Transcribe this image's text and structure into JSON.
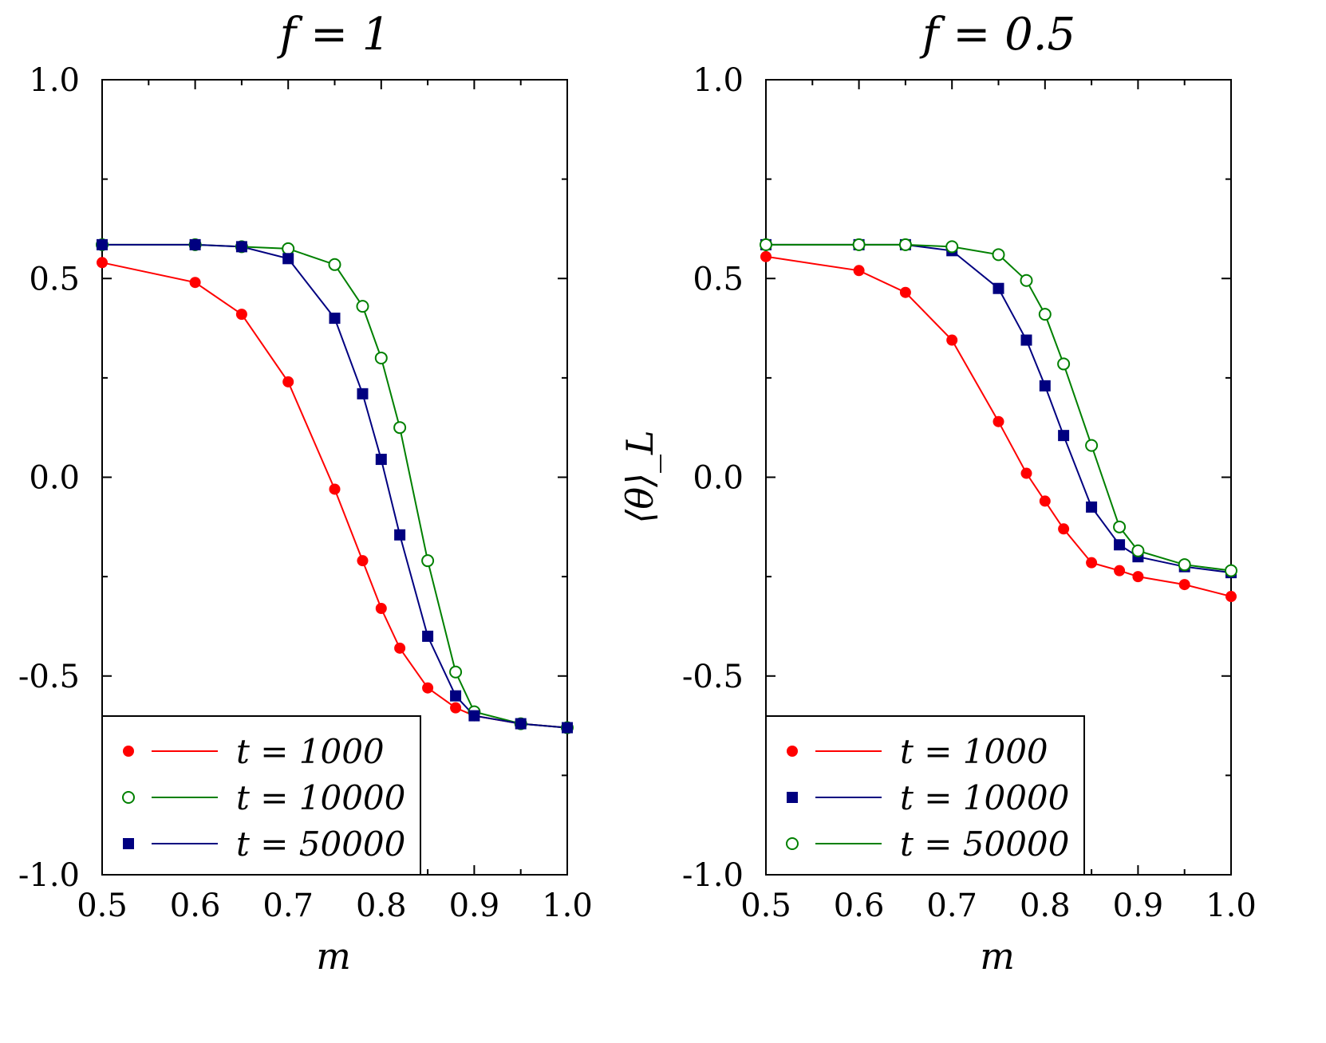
{
  "shared_ylabel": "⟨θ⟩_L",
  "colors": {
    "red": "#ff0000",
    "green": "#008000",
    "navy": "#000080"
  },
  "chart_data": [
    {
      "type": "line",
      "title": "f = 1",
      "xlabel": "m",
      "xlim": [
        0.5,
        1.0
      ],
      "ylim": [
        -1.0,
        1.0
      ],
      "xticks": [
        0.5,
        0.6,
        0.7,
        0.8,
        0.9,
        1.0
      ],
      "xtick_labels": [
        "0.5",
        "0.6",
        "0.7",
        "0.8",
        "0.9",
        "1.0"
      ],
      "yticks": [
        -1.0,
        -0.5,
        0.0,
        0.5,
        1.0
      ],
      "ytick_labels": [
        "-1.0",
        "-0.5",
        "0.0",
        "0.5",
        "1.0"
      ],
      "grid": false,
      "legend_position": "bottom-left",
      "series": [
        {
          "name": "t = 1000",
          "color": "#ff0000",
          "marker": "filled-circle",
          "x": [
            0.5,
            0.6,
            0.65,
            0.7,
            0.75,
            0.78,
            0.8,
            0.82,
            0.85,
            0.88,
            0.9,
            0.95,
            1.0
          ],
          "y": [
            0.54,
            0.49,
            0.41,
            0.24,
            -0.03,
            -0.21,
            -0.33,
            -0.43,
            -0.53,
            -0.58,
            -0.6,
            -0.62,
            -0.63
          ]
        },
        {
          "name": "t = 10000",
          "color": "#008000",
          "marker": "open-circle",
          "x": [
            0.5,
            0.6,
            0.65,
            0.7,
            0.75,
            0.78,
            0.8,
            0.82,
            0.85,
            0.88,
            0.9,
            0.95,
            1.0
          ],
          "y": [
            0.585,
            0.585,
            0.58,
            0.575,
            0.535,
            0.43,
            0.3,
            0.125,
            -0.21,
            -0.49,
            -0.59,
            -0.62,
            -0.63
          ]
        },
        {
          "name": "t = 50000",
          "color": "#000080",
          "marker": "filled-square",
          "x": [
            0.5,
            0.6,
            0.65,
            0.7,
            0.75,
            0.78,
            0.8,
            0.82,
            0.85,
            0.88,
            0.9,
            0.95,
            1.0
          ],
          "y": [
            0.585,
            0.585,
            0.58,
            0.55,
            0.4,
            0.21,
            0.045,
            -0.145,
            -0.4,
            -0.55,
            -0.6,
            -0.62,
            -0.63
          ]
        }
      ]
    },
    {
      "type": "line",
      "title": "f = 0.5",
      "xlabel": "m",
      "xlim": [
        0.5,
        1.0
      ],
      "ylim": [
        -1.0,
        1.0
      ],
      "xticks": [
        0.5,
        0.6,
        0.7,
        0.8,
        0.9,
        1.0
      ],
      "xtick_labels": [
        "0.5",
        "0.6",
        "0.7",
        "0.8",
        "0.9",
        "1.0"
      ],
      "yticks": [
        -1.0,
        -0.5,
        0.0,
        0.5,
        1.0
      ],
      "ytick_labels": [
        "-1.0",
        "-0.5",
        "0.0",
        "0.5",
        "1.0"
      ],
      "grid": false,
      "legend_position": "bottom-left",
      "series": [
        {
          "name": "t = 1000",
          "color": "#ff0000",
          "marker": "filled-circle",
          "x": [
            0.5,
            0.6,
            0.65,
            0.7,
            0.75,
            0.78,
            0.8,
            0.82,
            0.85,
            0.88,
            0.9,
            0.95,
            1.0
          ],
          "y": [
            0.555,
            0.52,
            0.465,
            0.345,
            0.14,
            0.01,
            -0.06,
            -0.13,
            -0.215,
            -0.235,
            -0.25,
            -0.27,
            -0.3
          ]
        },
        {
          "name": "t = 10000",
          "color": "#000080",
          "marker": "filled-square",
          "x": [
            0.5,
            0.6,
            0.65,
            0.7,
            0.75,
            0.78,
            0.8,
            0.82,
            0.85,
            0.88,
            0.9,
            0.95,
            1.0
          ],
          "y": [
            0.585,
            0.585,
            0.585,
            0.57,
            0.475,
            0.345,
            0.23,
            0.105,
            -0.075,
            -0.17,
            -0.2,
            -0.225,
            -0.24
          ]
        },
        {
          "name": "t = 50000",
          "color": "#008000",
          "marker": "open-circle",
          "x": [
            0.5,
            0.6,
            0.65,
            0.7,
            0.75,
            0.78,
            0.8,
            0.82,
            0.85,
            0.88,
            0.9,
            0.95,
            1.0
          ],
          "y": [
            0.585,
            0.585,
            0.585,
            0.58,
            0.56,
            0.495,
            0.41,
            0.285,
            0.08,
            -0.125,
            -0.185,
            -0.22,
            -0.235
          ]
        }
      ]
    }
  ]
}
